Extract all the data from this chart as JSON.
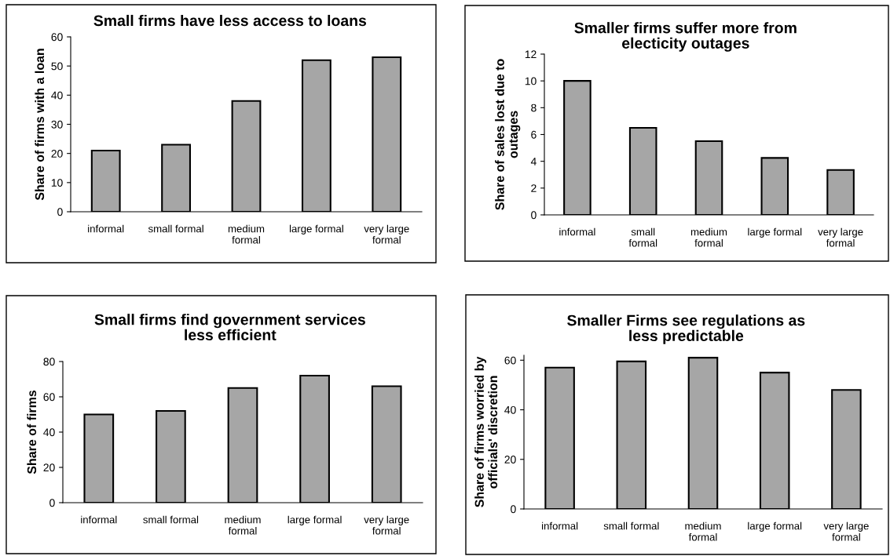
{
  "chart_data": [
    {
      "type": "bar",
      "title": "Small firms have less access to loans",
      "ylabel": "Share of firms with a loan",
      "categories": [
        "informal",
        "small formal",
        "medium\nformal",
        "large formal",
        "very large\nformal"
      ],
      "values": [
        21,
        23,
        38,
        52,
        53
      ],
      "color": "#a6a6a6",
      "ylim": [
        0,
        60
      ],
      "yticks": [
        0,
        10,
        20,
        30,
        40,
        50,
        60
      ],
      "grid": false,
      "legend": false
    },
    {
      "type": "bar",
      "title": "Smaller firms suffer more from\nelecticity outages",
      "ylabel": "Share of sales lost due to\noutages",
      "categories": [
        "informal",
        "small\nformal",
        "medium\nformal",
        "large formal",
        "very large\nformal"
      ],
      "values": [
        10,
        6.5,
        5.5,
        4.25,
        3.35
      ],
      "color": "#a6a6a6",
      "ylim": [
        0,
        12
      ],
      "yticks": [
        0,
        2,
        4,
        6,
        8,
        10,
        12
      ],
      "grid": false,
      "legend": false
    },
    {
      "type": "bar",
      "title": "Small firms find government services\nless efficient",
      "ylabel": "Share of firms",
      "categories": [
        "informal",
        "small formal",
        "medium\nformal",
        "large formal",
        "very large\nformal"
      ],
      "values": [
        50,
        52,
        65,
        72,
        66
      ],
      "color": "#a6a6a6",
      "ylim": [
        0,
        80
      ],
      "yticks": [
        0,
        20,
        40,
        60,
        80
      ],
      "grid": false,
      "legend": false
    },
    {
      "type": "bar",
      "title": "Smaller Firms see regulations as\nless predictable",
      "ylabel": "Share of firms worried by\nofficials' discretion",
      "categories": [
        "informal",
        "small formal",
        "medium\nformal",
        "large formal",
        "very large\nformal"
      ],
      "values": [
        57,
        59.5,
        61,
        55,
        48
      ],
      "color": "#a6a6a6",
      "ylim": [
        0,
        62
      ],
      "yticks": [
        0,
        20,
        40,
        60
      ],
      "grid": false,
      "legend": false
    }
  ]
}
